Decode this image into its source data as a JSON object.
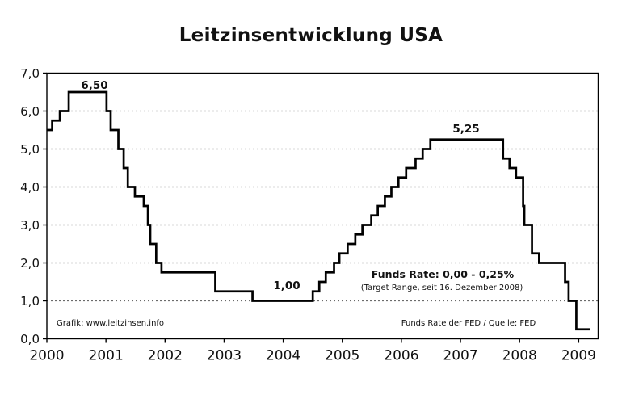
{
  "title": "Leitzinsentwicklung USA",
  "annotations": {
    "peak_2000": "6,50",
    "trough_2003": "1,00",
    "peak_2006": "5,25",
    "current_note_line1": "Funds Rate: 0,00 - 0,25%",
    "current_note_line2": "(Target Range, seit 16. Dezember 2008)",
    "credit": "Grafik: www.leitzinsen.info",
    "source": "Funds Rate der FED / Quelle: FED"
  },
  "colors": {
    "line": "#000000",
    "grid": "#6b6b6b",
    "border": "#000000",
    "frame": "#8c8c8c",
    "text": "#111111",
    "background": "#ffffff"
  },
  "chart_data": {
    "type": "line",
    "subtype": "step",
    "title": "Leitzinsentwicklung USA",
    "xlabel": "",
    "ylabel": "",
    "xlim": [
      2000,
      2009.33
    ],
    "ylim": [
      0,
      7
    ],
    "grid": "horizontal-dotted",
    "legend": "none",
    "x_ticks": [
      {
        "value": 2000,
        "label": "2000"
      },
      {
        "value": 2001,
        "label": "2001"
      },
      {
        "value": 2002,
        "label": "2002"
      },
      {
        "value": 2003,
        "label": "2003"
      },
      {
        "value": 2004,
        "label": "2004"
      },
      {
        "value": 2005,
        "label": "2005"
      },
      {
        "value": 2006,
        "label": "2006"
      },
      {
        "value": 2007,
        "label": "2007"
      },
      {
        "value": 2008,
        "label": "2008"
      },
      {
        "value": 2009,
        "label": "2009"
      }
    ],
    "y_ticks": [
      {
        "value": 0,
        "label": "0,0"
      },
      {
        "value": 1,
        "label": "1,0"
      },
      {
        "value": 2,
        "label": "2,0"
      },
      {
        "value": 3,
        "label": "3,0"
      },
      {
        "value": 4,
        "label": "4,0"
      },
      {
        "value": 5,
        "label": "5,0"
      },
      {
        "value": 6,
        "label": "6,0"
      },
      {
        "value": 7,
        "label": "7,0"
      }
    ],
    "gridlines_y": [
      1,
      2,
      3,
      4,
      5,
      6
    ],
    "series": [
      {
        "name": "Funds Rate der FED (%)",
        "points": [
          [
            2000.0,
            5.5
          ],
          [
            2000.09,
            5.75
          ],
          [
            2000.22,
            6.0
          ],
          [
            2000.37,
            6.5
          ],
          [
            2001.01,
            6.0
          ],
          [
            2001.08,
            5.5
          ],
          [
            2001.21,
            5.0
          ],
          [
            2001.3,
            4.5
          ],
          [
            2001.37,
            4.0
          ],
          [
            2001.49,
            3.75
          ],
          [
            2001.64,
            3.5
          ],
          [
            2001.71,
            3.0
          ],
          [
            2001.75,
            2.5
          ],
          [
            2001.85,
            2.0
          ],
          [
            2001.94,
            1.75
          ],
          [
            2002.85,
            1.25
          ],
          [
            2003.48,
            1.0
          ],
          [
            2004.5,
            1.25
          ],
          [
            2004.61,
            1.5
          ],
          [
            2004.72,
            1.75
          ],
          [
            2004.86,
            2.0
          ],
          [
            2004.95,
            2.25
          ],
          [
            2005.09,
            2.5
          ],
          [
            2005.22,
            2.75
          ],
          [
            2005.34,
            3.0
          ],
          [
            2005.49,
            3.25
          ],
          [
            2005.6,
            3.5
          ],
          [
            2005.72,
            3.75
          ],
          [
            2005.83,
            4.0
          ],
          [
            2005.95,
            4.25
          ],
          [
            2006.08,
            4.5
          ],
          [
            2006.24,
            4.75
          ],
          [
            2006.36,
            5.0
          ],
          [
            2006.49,
            5.25
          ],
          [
            2007.72,
            4.75
          ],
          [
            2007.83,
            4.5
          ],
          [
            2007.94,
            4.25
          ],
          [
            2008.06,
            3.5
          ],
          [
            2008.08,
            3.0
          ],
          [
            2008.21,
            2.25
          ],
          [
            2008.33,
            2.0
          ],
          [
            2008.77,
            1.5
          ],
          [
            2008.83,
            1.0
          ],
          [
            2008.96,
            0.25
          ],
          [
            2009.2,
            0.25
          ]
        ]
      }
    ]
  }
}
